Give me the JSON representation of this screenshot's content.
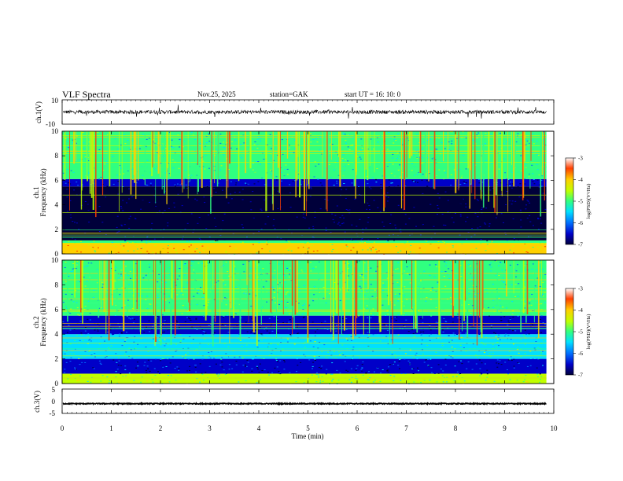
{
  "header": {
    "title": "VLF  Spectra",
    "date": "Nov.25, 2025",
    "station": "station=GAK",
    "start_ut": "start  UT =   16: 10: 0"
  },
  "chart_data": {
    "type": "heatmap",
    "title": "VLF  Spectra",
    "xlabel": "Time  (min)",
    "xlim": [
      0,
      10
    ],
    "x_ticks": [
      "0",
      "1",
      "2",
      "3",
      "4",
      "5",
      "6",
      "7",
      "8",
      "9",
      "10"
    ],
    "panels": [
      {
        "kind": "waveform",
        "name": "ch1-waveform",
        "ylabel": "ch.1(V)",
        "ylim": [
          -10,
          10
        ],
        "y_ticks": [
          "10",
          "-10"
        ],
        "baseline": 0,
        "amplitude": 1.5
      },
      {
        "kind": "spectrogram",
        "name": "ch1-spectrogram",
        "ylabel_channel": "ch.1",
        "ylabel": "Frequency  (kHz)",
        "ylim": [
          0,
          10
        ],
        "y_ticks": [
          "0",
          "2",
          "4",
          "6",
          "8",
          "10"
        ],
        "colorbar": {
          "label": "log(PSD)(V²/Hz)",
          "range": [
            -7,
            -3
          ],
          "ticks": [
            "-3",
            "-4",
            "-5",
            "-6",
            "-7"
          ],
          "colors": [
            "#00003a",
            "#0000c8",
            "#0070ff",
            "#00e0ff",
            "#30ff80",
            "#c0ff00",
            "#ffd000",
            "#ff4000",
            "#ffffff"
          ]
        },
        "bands_khz": [
          {
            "from": 0.0,
            "to": 0.9,
            "level": -4.0
          },
          {
            "from": 0.9,
            "to": 1.1,
            "level": -4.6
          },
          {
            "from": 1.1,
            "to": 5.5,
            "level": -6.8
          },
          {
            "from": 5.5,
            "to": 6.1,
            "level": -6.1
          },
          {
            "from": 6.1,
            "to": 10.0,
            "level": -5.0
          }
        ]
      },
      {
        "kind": "spectrogram",
        "name": "ch2-spectrogram",
        "ylabel_channel": "ch.2",
        "ylabel": "Frequency  (kHz)",
        "ylim": [
          0,
          10
        ],
        "y_ticks": [
          "0",
          "2",
          "4",
          "6",
          "8",
          "10"
        ],
        "colorbar": {
          "label": "log(PSD)(V²/Hz)",
          "range": [
            -7,
            -3
          ],
          "ticks": [
            "-3",
            "-4",
            "-5",
            "-6",
            "-7"
          ],
          "colors": [
            "#00003a",
            "#0000c8",
            "#0070ff",
            "#00e0ff",
            "#30ff80",
            "#c0ff00",
            "#ffd000",
            "#ff4000",
            "#ffffff"
          ]
        },
        "bands_khz": [
          {
            "from": 0.0,
            "to": 0.8,
            "level": -4.5
          },
          {
            "from": 0.8,
            "to": 2.0,
            "level": -6.2
          },
          {
            "from": 2.0,
            "to": 4.0,
            "level": -5.2
          },
          {
            "from": 4.0,
            "to": 5.5,
            "level": -6.4
          },
          {
            "from": 5.5,
            "to": 6.5,
            "level": -4.8
          },
          {
            "from": 6.5,
            "to": 10.0,
            "level": -5.0
          }
        ]
      },
      {
        "kind": "waveform",
        "name": "ch3-waveform",
        "ylabel": "ch.3(V)",
        "ylim": [
          -5,
          5
        ],
        "y_ticks": [
          "5",
          "0",
          "-5"
        ],
        "baseline": -1,
        "amplitude": 0.2
      }
    ],
    "data_end_min": 9.85
  }
}
